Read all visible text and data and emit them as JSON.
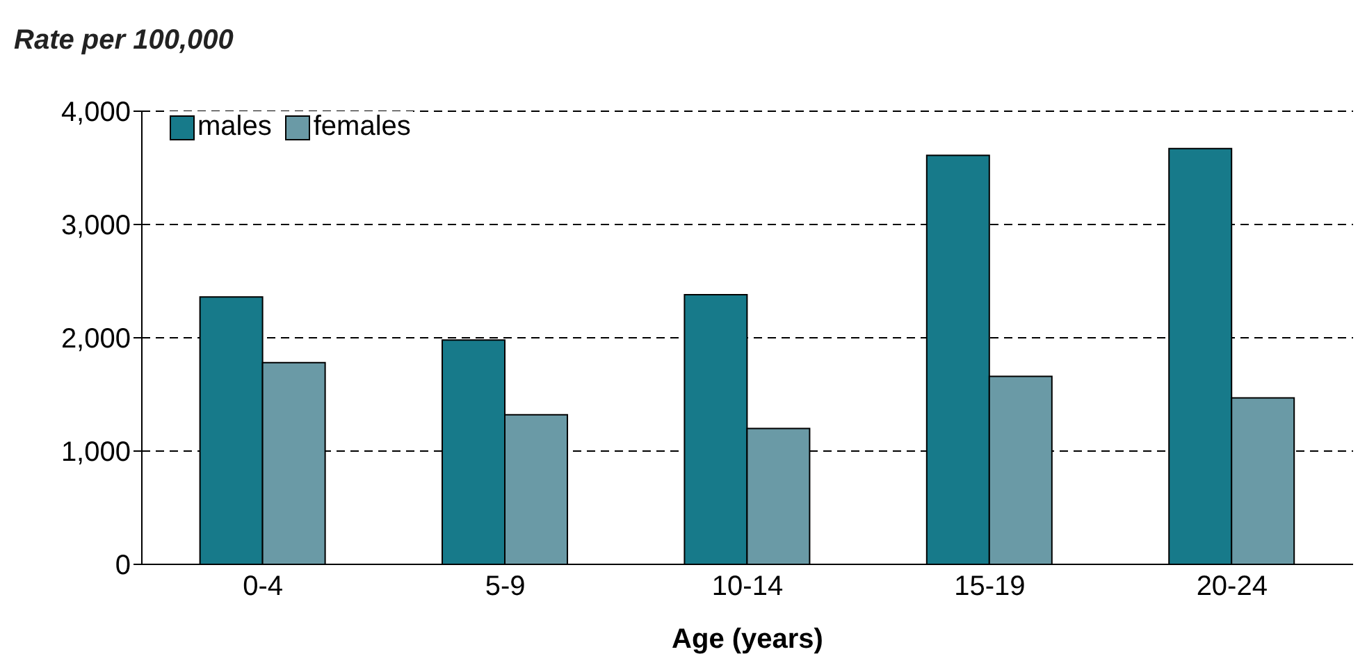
{
  "chart_data": {
    "type": "bar",
    "ylabel": "Rate per 100,000",
    "xlabel": "Age (years)",
    "categories": [
      "0-4",
      "5-9",
      "10-14",
      "15-19",
      "20-24"
    ],
    "series": [
      {
        "name": "males",
        "color": "#177a8a",
        "values": [
          2360,
          1980,
          2380,
          3610,
          3670
        ]
      },
      {
        "name": "females",
        "color": "#6a9aa6",
        "values": [
          1780,
          1320,
          1200,
          1660,
          1470
        ]
      }
    ],
    "ylim": [
      0,
      4000
    ],
    "yticks": [
      {
        "value": 0,
        "label": "0"
      },
      {
        "value": 1000,
        "label": "1,000"
      },
      {
        "value": 2000,
        "label": "2,000"
      },
      {
        "value": 3000,
        "label": "3,000"
      },
      {
        "value": 4000,
        "label": "4,000"
      }
    ],
    "grid": "y",
    "legend": "top left"
  }
}
